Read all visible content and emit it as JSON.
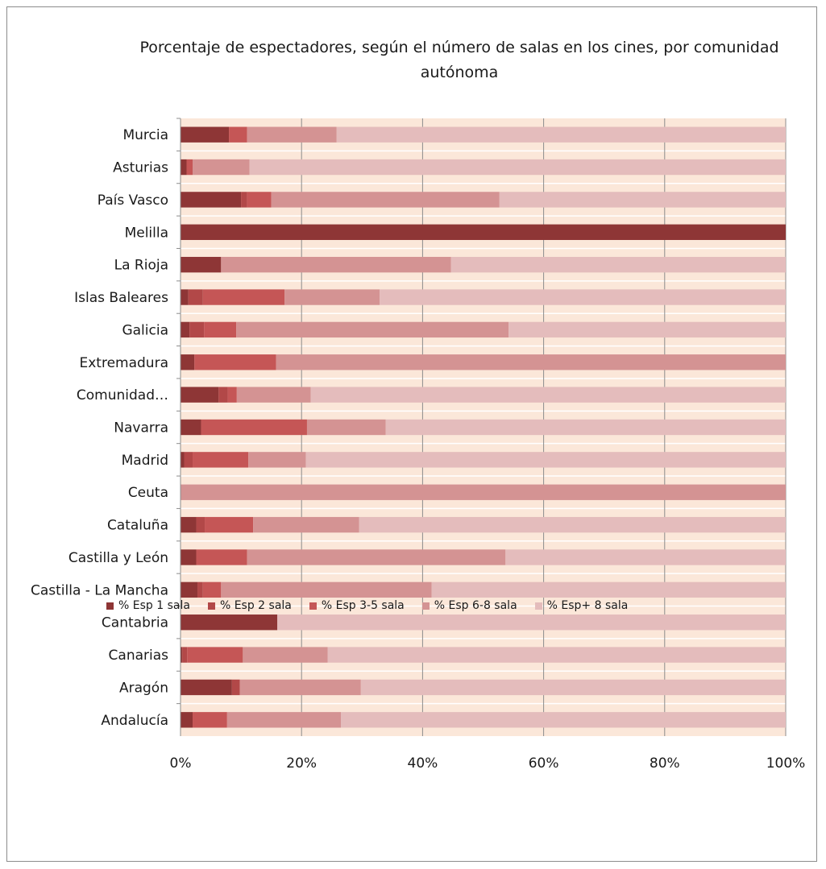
{
  "chart_data": {
    "type": "bar",
    "orientation": "horizontal",
    "stacked": "percent",
    "title": "Porcentaje de espectadores, según el número de salas en los cines, por comunidad autónoma",
    "categories": [
      "Murcia",
      "Asturias",
      "País Vasco",
      "Melilla",
      "La Rioja",
      "Islas Baleares",
      "Galicia",
      "Extremadura",
      "Comunidad…",
      "Navarra",
      "Madrid",
      "Ceuta",
      "Cataluña",
      "Castilla y León",
      "Castilla - La Mancha",
      "Cantabria",
      "Canarias",
      "Aragón",
      "Andalucía"
    ],
    "x_ticks": [
      "0%",
      "20%",
      "40%",
      "60%",
      "80%",
      "100%"
    ],
    "xlim": [
      0,
      100
    ],
    "grid": true,
    "legend_position": "bottom",
    "series": [
      {
        "name": "% Esp 1 sala",
        "color": "#8e3636",
        "values": [
          8,
          1,
          10,
          100,
          6.7,
          1.3,
          1.5,
          2.3,
          6.3,
          3.4,
          0.6,
          0,
          2.6,
          2.6,
          2.8,
          16,
          0.3,
          8.5,
          2
        ]
      },
      {
        "name": "% Esp 2 sala",
        "color": "#b24848",
        "values": [
          0,
          0,
          1,
          0,
          0,
          2.4,
          2.4,
          0,
          1.5,
          0,
          1.4,
          0,
          1.4,
          0,
          0.9,
          0,
          0.8,
          1.3,
          0
        ]
      },
      {
        "name": "% Esp 3-5 sala",
        "color": "#c55656",
        "values": [
          3,
          1,
          4,
          0,
          0,
          13.5,
          5.3,
          13.5,
          1.5,
          17.5,
          9.2,
          0,
          8,
          8.4,
          3,
          0,
          9.2,
          0,
          5.7
        ]
      },
      {
        "name": "% Esp 6-8 sala",
        "color": "#d49393",
        "values": [
          14.8,
          9.4,
          37.7,
          0,
          38,
          15.7,
          45,
          84.2,
          12.2,
          13,
          9.5,
          100,
          17.5,
          42.7,
          34.8,
          0,
          14,
          20,
          18.8
        ]
      },
      {
        "name": "% Esp+ 8 sala",
        "color": "#e4bcbc",
        "values": [
          74.2,
          88.6,
          47.3,
          0,
          55.3,
          67.1,
          45.8,
          0,
          78.5,
          66.1,
          79.3,
          0,
          70.5,
          46.3,
          58.5,
          84,
          75.7,
          70.2,
          73.5
        ]
      }
    ]
  }
}
